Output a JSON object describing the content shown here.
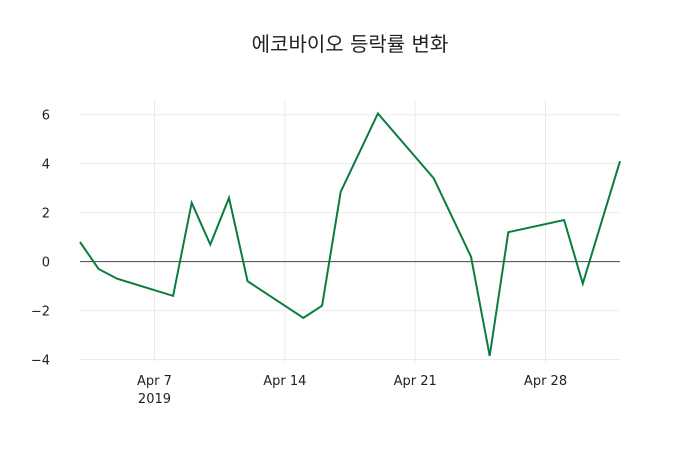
{
  "chart_data": {
    "type": "line",
    "title": "에코바이오 등락률 변화",
    "xlabel": "",
    "ylabel": "",
    "x": [
      "2019-04-03",
      "2019-04-04",
      "2019-04-05",
      "2019-04-08",
      "2019-04-09",
      "2019-04-10",
      "2019-04-11",
      "2019-04-12",
      "2019-04-15",
      "2019-04-16",
      "2019-04-17",
      "2019-04-19",
      "2019-04-22",
      "2019-04-24",
      "2019-04-25",
      "2019-04-26",
      "2019-04-29",
      "2019-04-30",
      "2019-05-02"
    ],
    "series": [
      {
        "name": "등락률",
        "color": "#0a7d3e",
        "values": [
          0.8,
          -0.3,
          -0.7,
          -1.4,
          2.4,
          0.7,
          2.6,
          -0.8,
          -2.3,
          -1.8,
          2.85,
          6.05,
          3.4,
          0.2,
          -3.85,
          1.2,
          1.7,
          -0.9,
          4.1
        ]
      }
    ],
    "ylim": [
      -4.1,
      6.6
    ],
    "xlim": [
      "2019-04-03",
      "2019-05-02"
    ],
    "y_ticks": [
      -4,
      -2,
      0,
      2,
      4,
      6
    ],
    "y_tick_labels": [
      "−4",
      "−2",
      "0",
      "2",
      "4",
      "6"
    ],
    "x_ticks": [
      "2019-04-07",
      "2019-04-14",
      "2019-04-21",
      "2019-04-28"
    ],
    "x_tick_labels": [
      "Apr 7",
      "Apr 14",
      "Apr 21",
      "Apr 28"
    ],
    "x_tick_sublabel": "2019",
    "grid": true,
    "zero_line": true,
    "legend": "none"
  }
}
